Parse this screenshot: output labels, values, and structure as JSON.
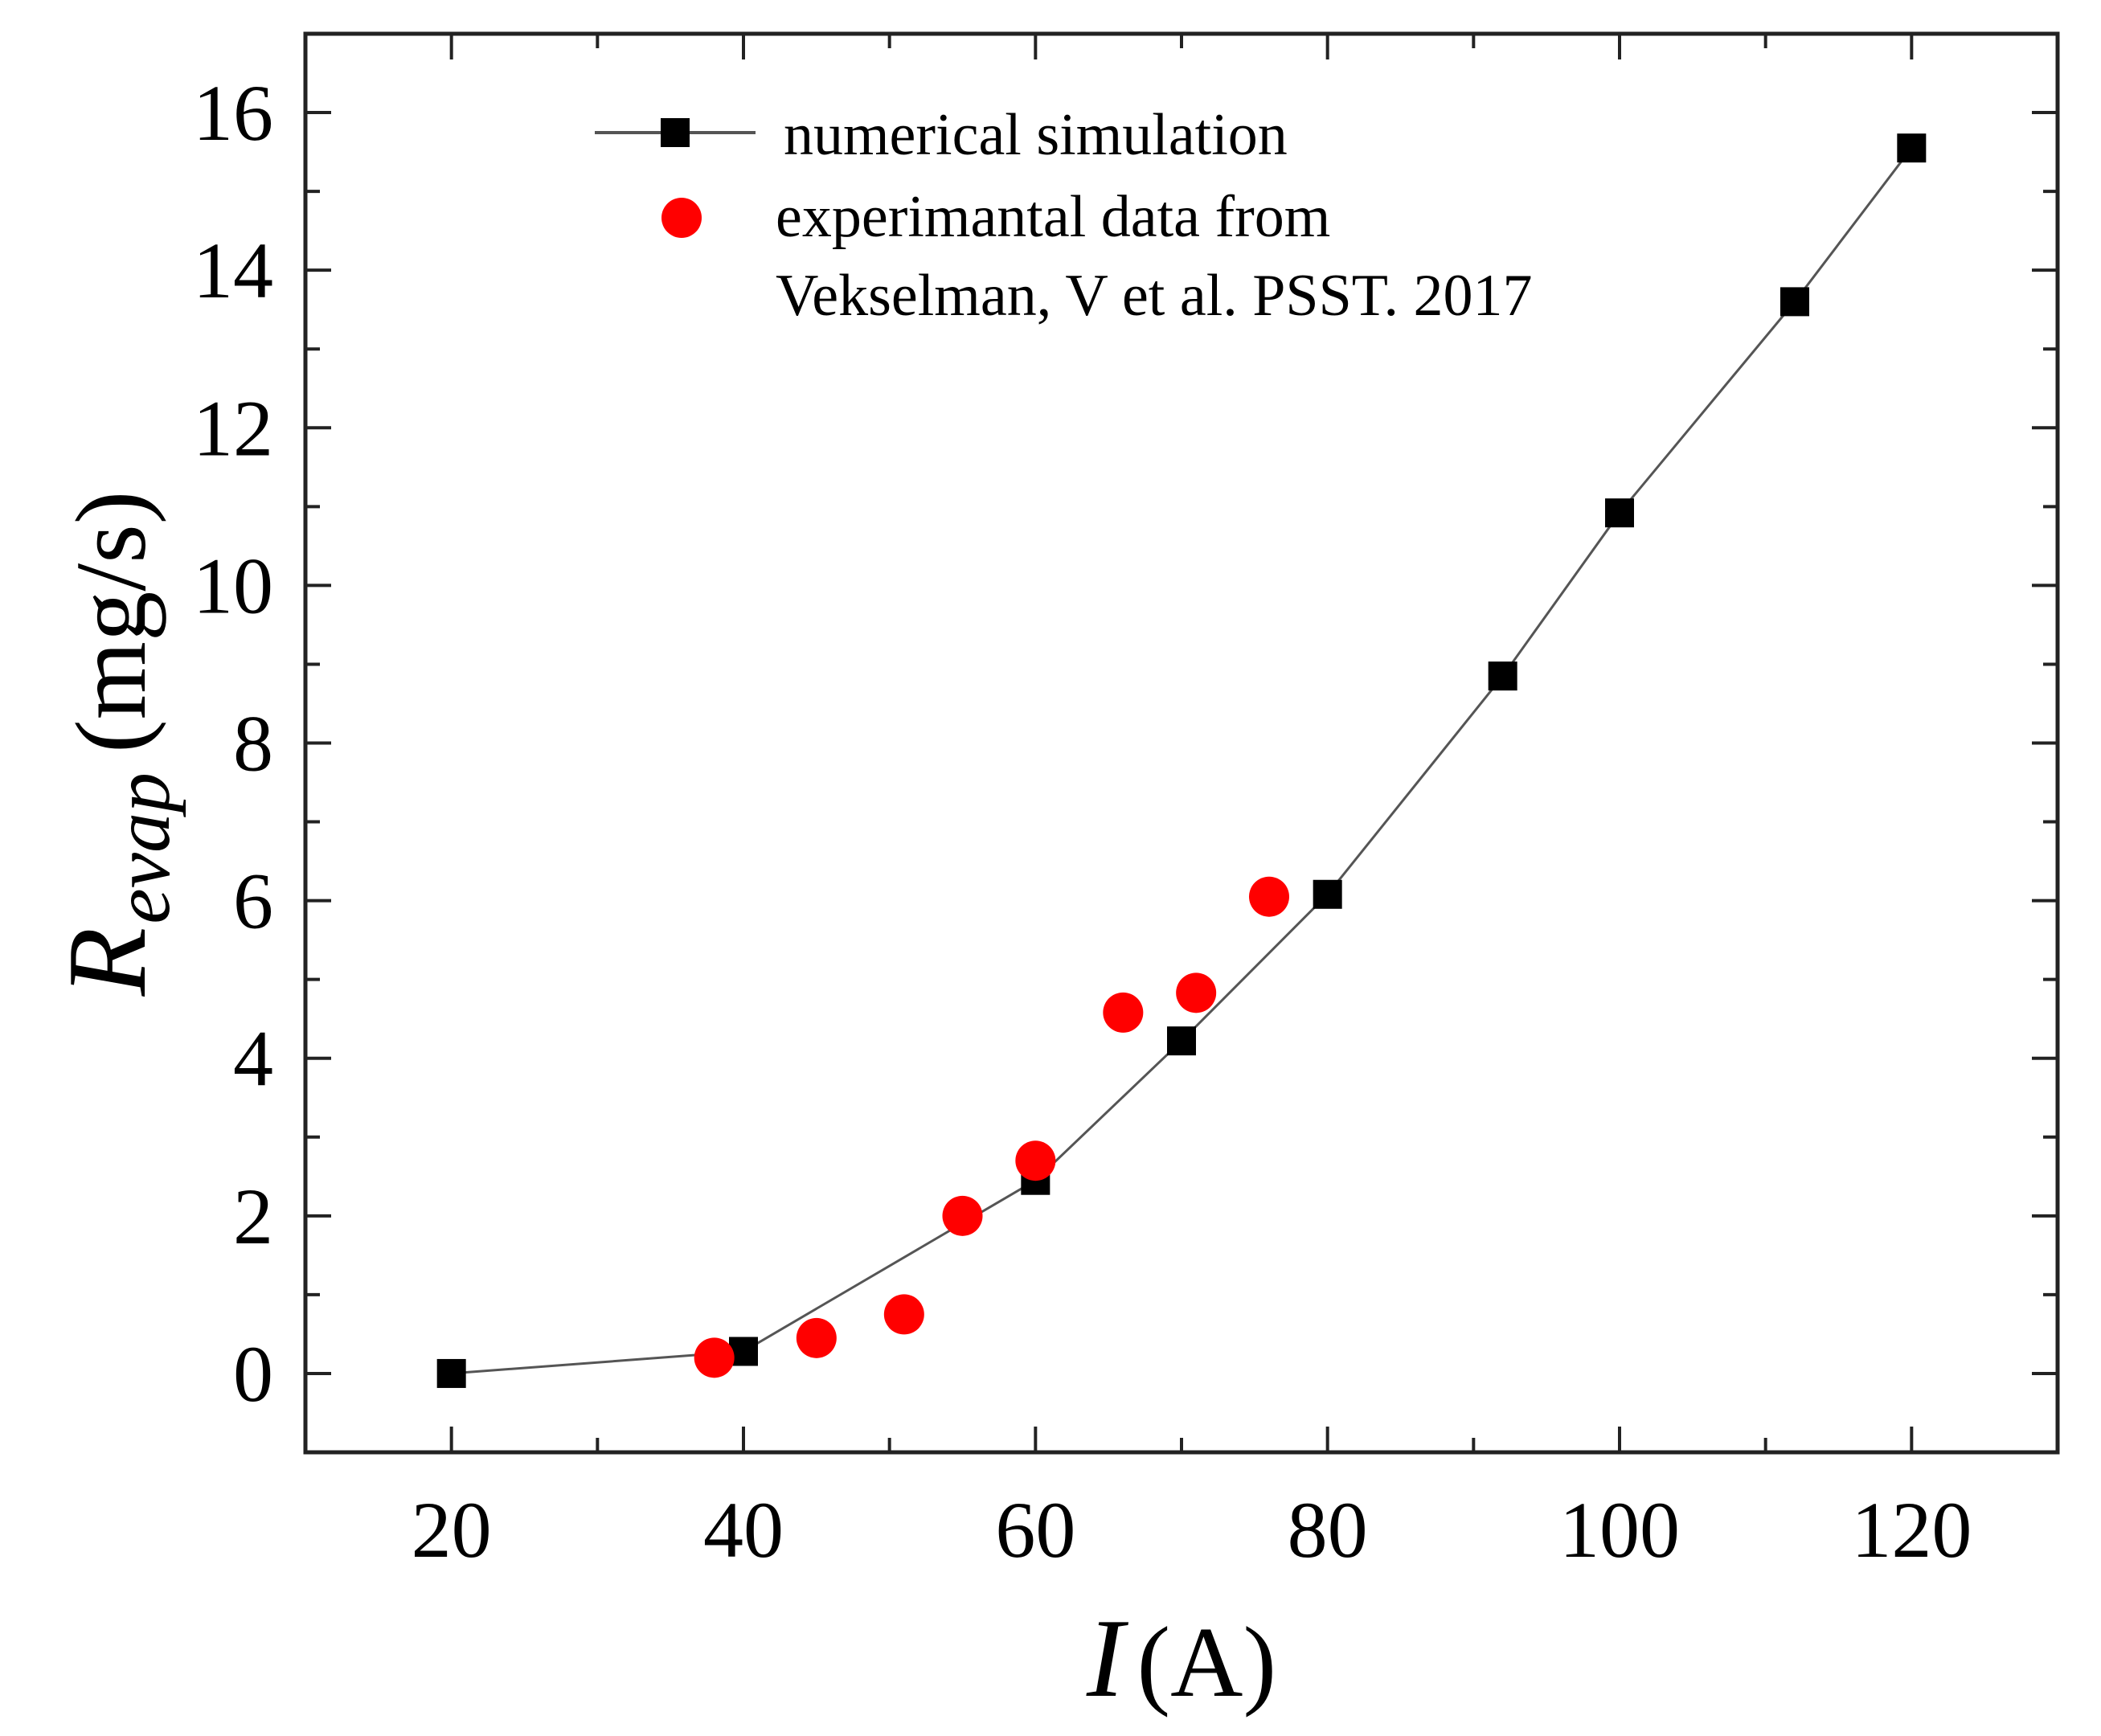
{
  "chart_data": {
    "type": "scatter",
    "xlabel": {
      "symbol": "I",
      "unit": "(A)"
    },
    "ylabel": {
      "symbol": "R",
      "subscript": "evap",
      "unit": "(mg/s)"
    },
    "xlim": [
      10,
      130
    ],
    "ylim": [
      -1,
      17
    ],
    "x_ticks": [
      20,
      40,
      60,
      80,
      100,
      120
    ],
    "y_ticks": [
      0,
      2,
      4,
      6,
      8,
      10,
      12,
      14,
      16
    ],
    "x_tick_labels": [
      "20",
      "40",
      "60",
      "80",
      "100",
      "120"
    ],
    "y_tick_labels": [
      "0",
      "2",
      "4",
      "6",
      "8",
      "10",
      "12",
      "14",
      "16"
    ],
    "legend": {
      "position": "top-center",
      "entries": [
        {
          "label": "numerical simulation"
        },
        {
          "label": "experimantal data from"
        },
        {
          "label": "Vekselman, V et al. PSST. 2017"
        }
      ]
    },
    "series": [
      {
        "name": "numerical simulation",
        "marker": "square",
        "line": true,
        "color": "#000000",
        "line_color": "#555555",
        "x": [
          20,
          40,
          60,
          70,
          80,
          92,
          100,
          112,
          120
        ],
        "y": [
          0,
          0.28,
          2.45,
          4.22,
          6.08,
          8.85,
          10.92,
          13.6,
          15.55
        ]
      },
      {
        "name": "experimantal data from Vekselman, V et al. PSST. 2017",
        "marker": "circle",
        "line": false,
        "color": "#ff0000",
        "x": [
          38,
          45,
          51,
          55,
          60,
          66,
          71,
          76
        ],
        "y": [
          0.2,
          0.45,
          0.75,
          2.0,
          2.7,
          4.58,
          4.83,
          6.05
        ]
      }
    ]
  }
}
